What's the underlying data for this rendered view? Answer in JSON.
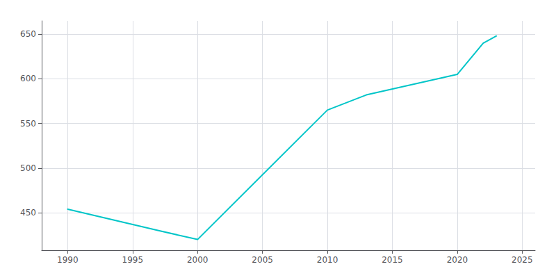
{
  "chart_data": {
    "type": "line",
    "x": [
      1990,
      1997,
      2000,
      2010,
      2013,
      2020,
      2022,
      2023
    ],
    "values": [
      454,
      430,
      420,
      565,
      582,
      605,
      640,
      648
    ],
    "color": "#00C5C8",
    "xlim": [
      1988,
      2026
    ],
    "ylim": [
      408,
      665
    ],
    "xticks": [
      1990,
      1995,
      2000,
      2005,
      2010,
      2015,
      2020,
      2025
    ],
    "yticks": [
      450,
      500,
      550,
      600,
      650
    ],
    "grid": true
  }
}
